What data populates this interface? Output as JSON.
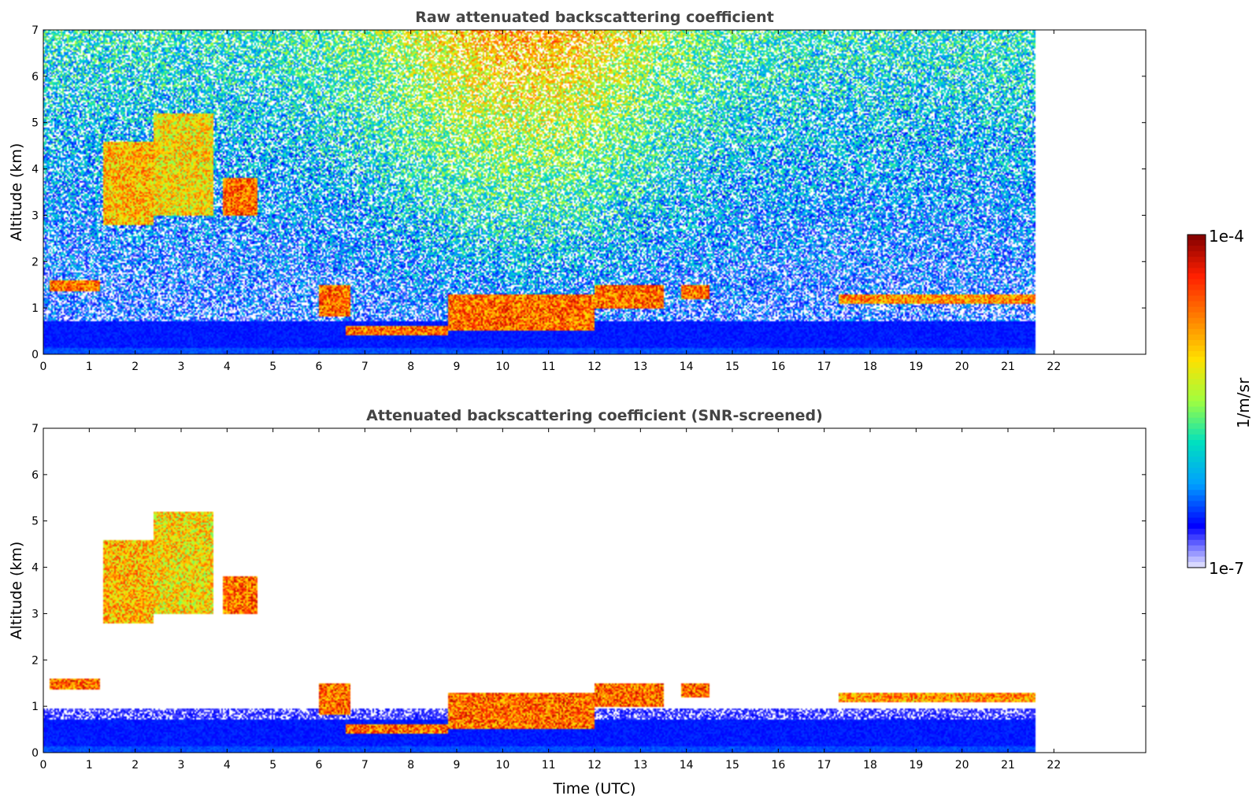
{
  "chart_data": [
    {
      "type": "heatmap",
      "title": "Raw attenuated backscattering coefficient",
      "xlabel": "",
      "ylabel": "Altitude (km)",
      "xlim": [
        0,
        24
      ],
      "ylim": [
        0,
        7
      ],
      "x_ticks": [
        "0",
        "1",
        "2",
        "3",
        "4",
        "5",
        "6",
        "7",
        "8",
        "9",
        "10",
        "11",
        "12",
        "13",
        "14",
        "15",
        "16",
        "17",
        "18",
        "19",
        "20",
        "21",
        "22"
      ],
      "y_ticks": [
        "0",
        "1",
        "2",
        "3",
        "4",
        "5",
        "6",
        "7"
      ],
      "data_end_time_utc": 21.6,
      "screened": false,
      "cloud_layers": [
        {
          "t": [
            0.15,
            1.25
          ],
          "alt": [
            1.35,
            1.6
          ],
          "level": 0.95
        },
        {
          "t": [
            1.3,
            2.4
          ],
          "alt": [
            2.8,
            4.6
          ],
          "level": 0.85
        },
        {
          "t": [
            2.4,
            3.7
          ],
          "alt": [
            3.0,
            5.2
          ],
          "level": 0.8
        },
        {
          "t": [
            3.9,
            4.65
          ],
          "alt": [
            3.0,
            3.8
          ],
          "level": 0.95
        },
        {
          "t": [
            6.0,
            6.7
          ],
          "alt": [
            0.8,
            1.5
          ],
          "level": 0.95
        },
        {
          "t": [
            6.6,
            8.8
          ],
          "alt": [
            0.4,
            0.6
          ],
          "level": 0.95
        },
        {
          "t": [
            8.8,
            12.0
          ],
          "alt": [
            0.5,
            1.3
          ],
          "level": 0.95
        },
        {
          "t": [
            12.0,
            13.5
          ],
          "alt": [
            1.0,
            1.5
          ],
          "level": 0.95
        },
        {
          "t": [
            13.9,
            14.5
          ],
          "alt": [
            1.2,
            1.5
          ],
          "level": 0.95
        },
        {
          "t": [
            17.3,
            21.6
          ],
          "alt": [
            1.1,
            1.3
          ],
          "level": 0.9
        }
      ]
    },
    {
      "type": "heatmap",
      "title": "Attenuated backscattering coefficient (SNR-screened)",
      "xlabel": "Time (UTC)",
      "ylabel": "Altitude (km)",
      "xlim": [
        0,
        24
      ],
      "ylim": [
        0,
        7
      ],
      "x_ticks": [
        "0",
        "1",
        "2",
        "3",
        "4",
        "5",
        "6",
        "7",
        "8",
        "9",
        "10",
        "11",
        "12",
        "13",
        "14",
        "15",
        "16",
        "17",
        "18",
        "19",
        "20",
        "21",
        "22"
      ],
      "y_ticks": [
        "0",
        "1",
        "2",
        "3",
        "4",
        "5",
        "6",
        "7"
      ],
      "data_end_time_utc": 21.6,
      "screened": true,
      "cloud_layers": [
        {
          "t": [
            0.15,
            1.25
          ],
          "alt": [
            1.35,
            1.6
          ],
          "level": 0.95
        },
        {
          "t": [
            1.3,
            2.4
          ],
          "alt": [
            2.8,
            4.6
          ],
          "level": 0.85
        },
        {
          "t": [
            2.4,
            3.7
          ],
          "alt": [
            3.0,
            5.2
          ],
          "level": 0.8
        },
        {
          "t": [
            3.9,
            4.65
          ],
          "alt": [
            3.0,
            3.8
          ],
          "level": 0.95
        },
        {
          "t": [
            6.0,
            6.7
          ],
          "alt": [
            0.8,
            1.5
          ],
          "level": 0.95
        },
        {
          "t": [
            6.6,
            8.8
          ],
          "alt": [
            0.4,
            0.6
          ],
          "level": 0.95
        },
        {
          "t": [
            8.8,
            12.0
          ],
          "alt": [
            0.5,
            1.3
          ],
          "level": 0.95
        },
        {
          "t": [
            12.0,
            13.5
          ],
          "alt": [
            1.0,
            1.5
          ],
          "level": 0.95
        },
        {
          "t": [
            13.9,
            14.5
          ],
          "alt": [
            1.2,
            1.5
          ],
          "level": 0.95
        },
        {
          "t": [
            17.3,
            21.6
          ],
          "alt": [
            1.1,
            1.3
          ],
          "level": 0.9
        }
      ]
    }
  ],
  "colorbar": {
    "label": "1/m/sr",
    "min_label": "1e-7",
    "max_label": "1e-4",
    "scale": "log",
    "colors": [
      "#e8e8ff",
      "#0000ff",
      "#00a0ff",
      "#00e0c0",
      "#a0ff40",
      "#ffe000",
      "#ff8000",
      "#ff2000",
      "#800000"
    ]
  }
}
